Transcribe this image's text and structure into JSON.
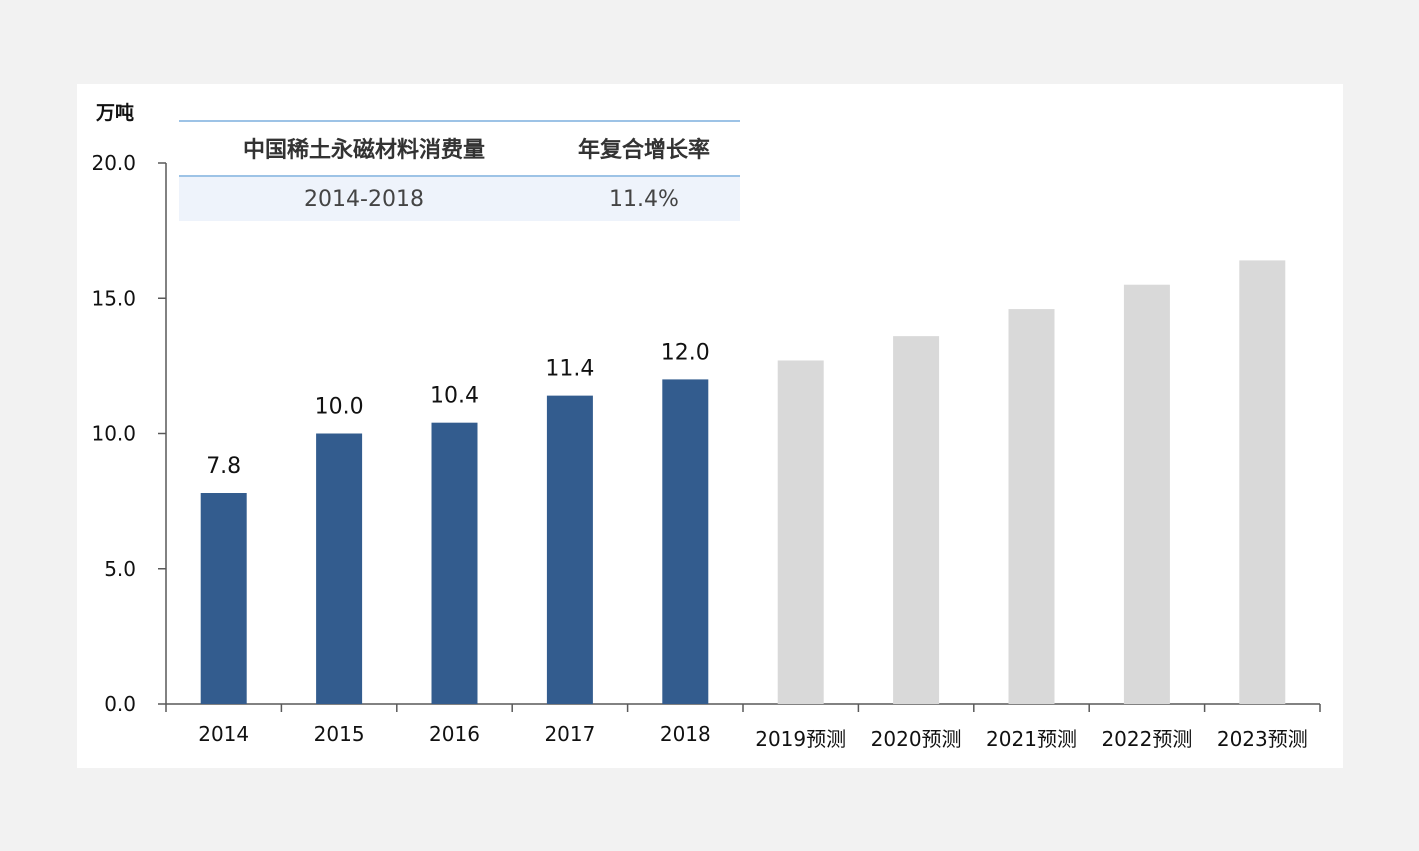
{
  "chart_data": {
    "type": "bar",
    "title": "",
    "ylabel": "万吨",
    "xlabel": "",
    "ylim": [
      0,
      20
    ],
    "yticks": [
      "0.0",
      "5.0",
      "10.0",
      "15.0",
      "20.0"
    ],
    "categories": [
      "2014",
      "2015",
      "2016",
      "2017",
      "2018",
      "2019预测",
      "2020预测",
      "2021预测",
      "2022预测",
      "2023预测"
    ],
    "series": [
      {
        "values": [
          7.8,
          10.0,
          10.4,
          11.4,
          12.0,
          12.7,
          13.6,
          14.6,
          15.5,
          16.4
        ],
        "labels": [
          "7.8",
          "10.0",
          "10.4",
          "11.4",
          "12.0",
          "",
          "",
          "",
          "",
          ""
        ],
        "colors": [
          "#335c8e",
          "#335c8e",
          "#335c8e",
          "#335c8e",
          "#335c8e",
          "#d9d9d9",
          "#d9d9d9",
          "#d9d9d9",
          "#d9d9d9",
          "#d9d9d9"
        ]
      }
    ],
    "grid": false,
    "legend": "none"
  },
  "cagr_table": {
    "headers": [
      "中国稀土永磁材料消费量",
      "年复合增长率"
    ],
    "row": [
      "2014-2018",
      "11.4%"
    ]
  },
  "colors": {
    "actual": "#335c8e",
    "forecast": "#d9d9d9",
    "table_line": "#9dc3e6",
    "table_fill": "#eef3fb"
  }
}
